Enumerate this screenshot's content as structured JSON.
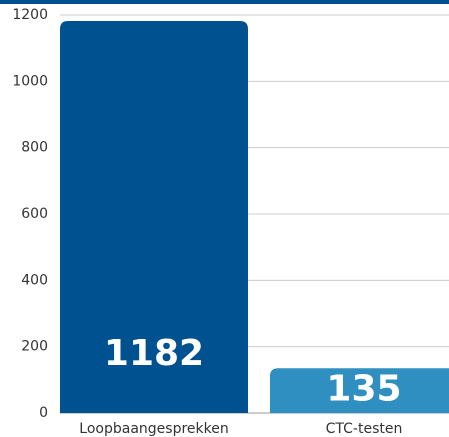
{
  "chart_data": {
    "type": "bar",
    "categories": [
      "Loopbaangesprekken",
      "CTC-testen"
    ],
    "series": [
      {
        "name": null,
        "colors": [
          "#00518f",
          "#2e8fc0"
        ],
        "values": [
          1182,
          135
        ]
      }
    ],
    "ylim": [
      0,
      1200
    ],
    "yticks": [
      0,
      200,
      400,
      600,
      800,
      1000,
      1200
    ],
    "grid": true
  }
}
